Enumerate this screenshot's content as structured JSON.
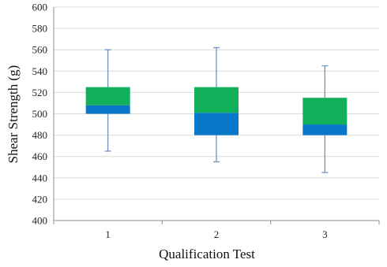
{
  "chart_data": {
    "type": "box",
    "xlabel": "Qualification Test",
    "ylabel": "Shear Strength (g)",
    "ylim": [
      400,
      600
    ],
    "ytick_step": 20,
    "yticks": [
      "400",
      "420",
      "440",
      "460",
      "480",
      "500",
      "520",
      "540",
      "560",
      "580",
      "600"
    ],
    "grid": true,
    "legend": "none",
    "categories": [
      "1",
      "2",
      "3"
    ],
    "boxes": [
      {
        "category": "1",
        "min": 465,
        "q1": 500,
        "median": 508,
        "q3": 525,
        "max": 560
      },
      {
        "category": "2",
        "min": 455,
        "q1": 480,
        "median": 501,
        "q3": 525,
        "max": 562
      },
      {
        "category": "3",
        "min": 445,
        "q1": 480,
        "median": 490,
        "q3": 515,
        "max": 545
      }
    ],
    "colors": {
      "lower_box": "#0a78c8",
      "upper_box": "#12b05a",
      "whisker": "#6f95c4",
      "grid": "#d9d9d9",
      "axis": "#8c8c8c"
    }
  }
}
